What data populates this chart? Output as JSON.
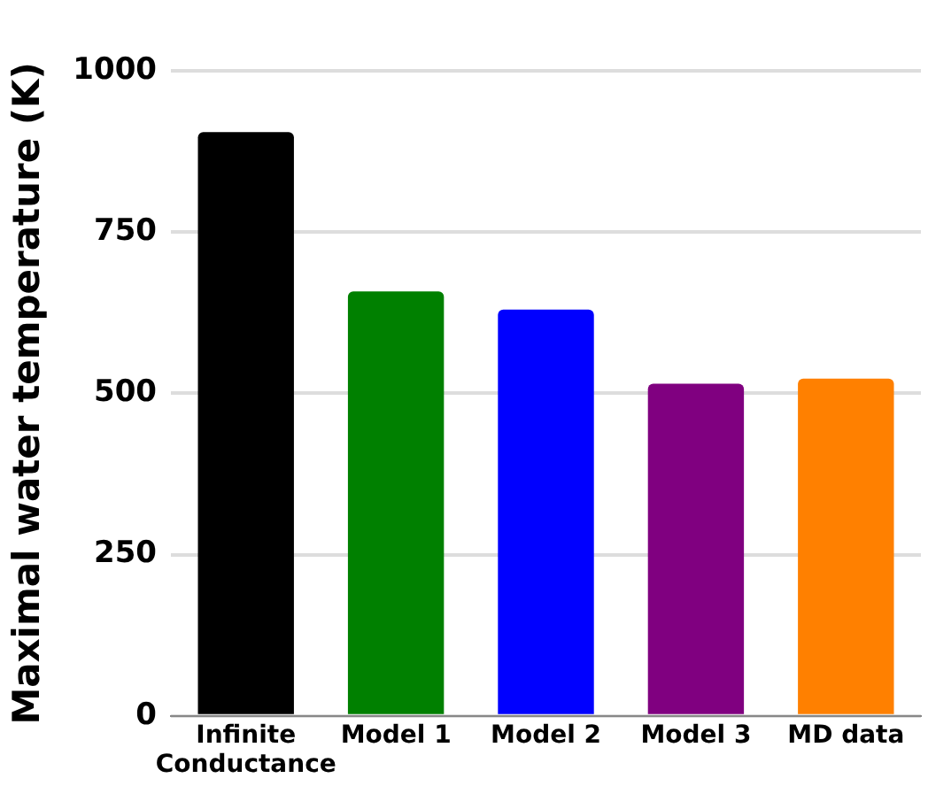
{
  "chart_data": {
    "type": "bar",
    "ylabel": "Maximal water temperature (K)",
    "categories": [
      "Infinite Conductance",
      "Model 1",
      "Model 2",
      "Model 3",
      "MD data"
    ],
    "values": [
      905,
      658,
      630,
      515,
      523
    ],
    "colors": [
      "#000000",
      "#008000",
      "#0000ff",
      "#800080",
      "#ff8000"
    ],
    "ylim": [
      0,
      1000
    ],
    "yticks": [
      0,
      250,
      500,
      750,
      1000
    ],
    "grid": "y",
    "legend": false
  }
}
